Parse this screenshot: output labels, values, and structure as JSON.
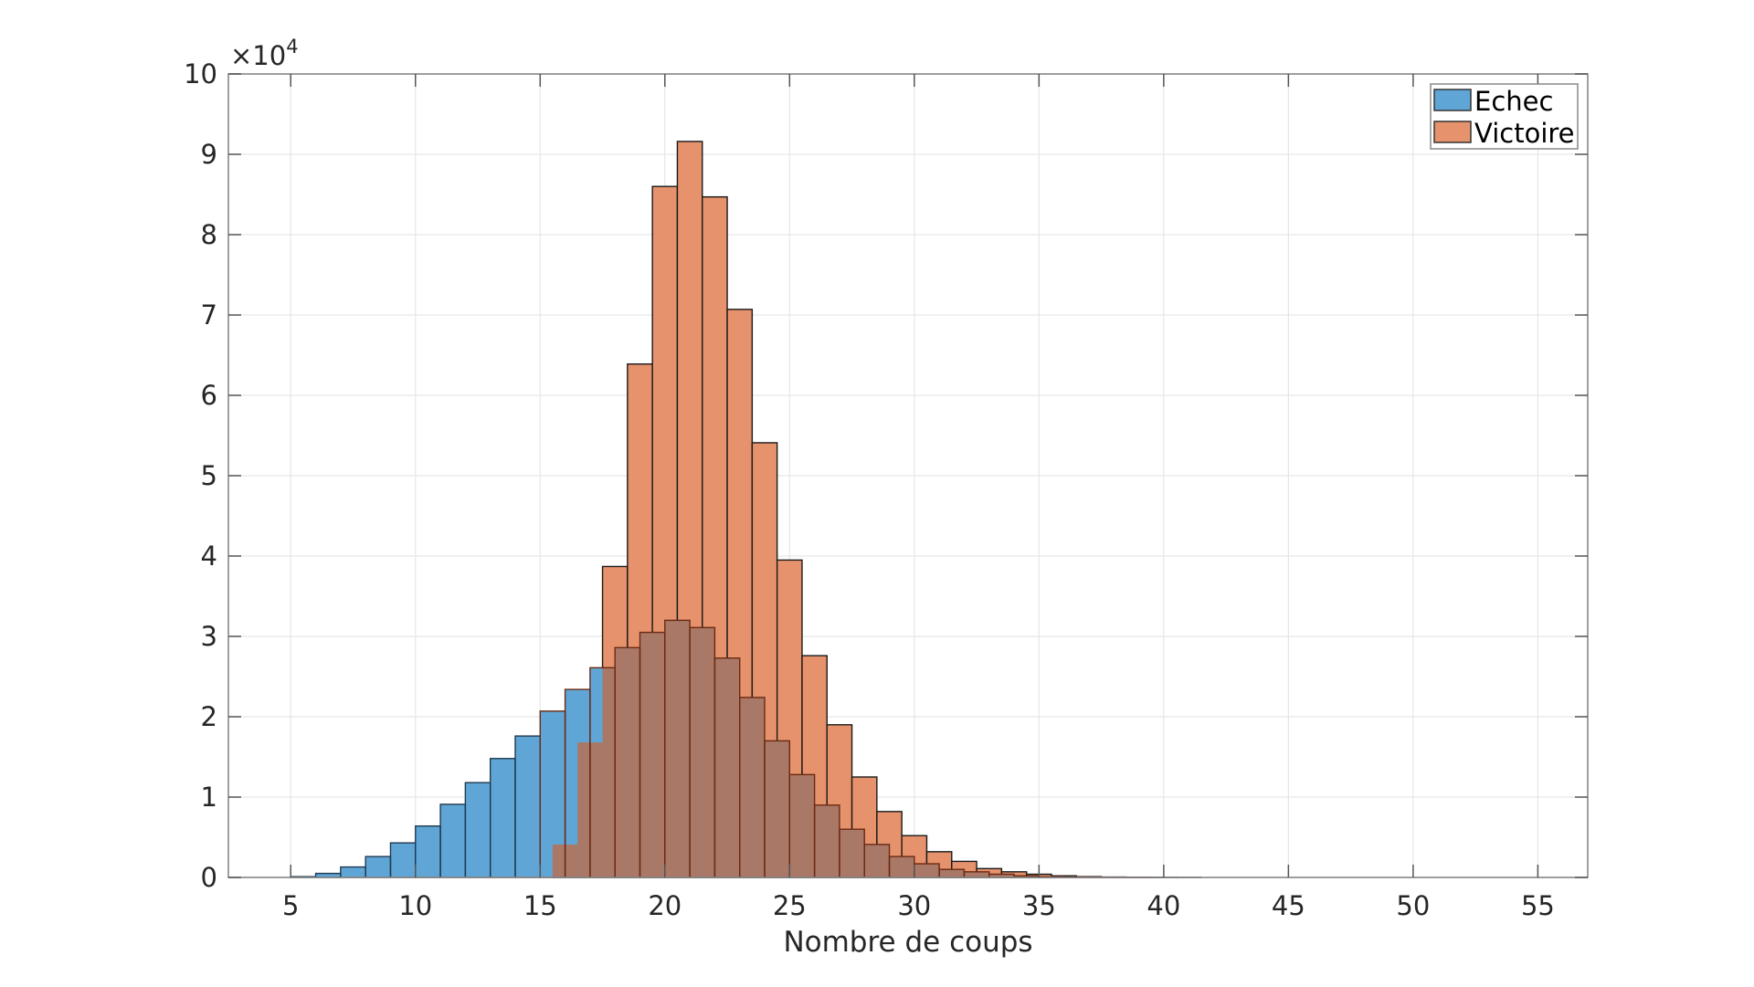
{
  "chart_data": {
    "type": "bar",
    "subtype": "overlapping-histogram",
    "title": "",
    "xlabel": "Nombre de coups",
    "ylabel": "",
    "y_multiplier_label": "×10",
    "y_multiplier_exponent": "4",
    "xlim": [
      2.5,
      57
    ],
    "ylim": [
      0,
      10
    ],
    "xticks": [
      5,
      10,
      15,
      20,
      25,
      30,
      35,
      40,
      45,
      50,
      55
    ],
    "yticks": [
      0,
      1,
      2,
      3,
      4,
      5,
      6,
      7,
      8,
      9,
      10
    ],
    "grid": true,
    "legend_position": "top-right",
    "bin_width": 1,
    "units_note": "values in units of 10^4",
    "series": [
      {
        "name": "Echec",
        "color": "#5fa6d7",
        "bin_edges_start": 5,
        "bin_alignment": "integer-edges",
        "bins": [
          {
            "x": 5,
            "value": 0.01
          },
          {
            "x": 6,
            "value": 0.05
          },
          {
            "x": 7,
            "value": 0.13
          },
          {
            "x": 8,
            "value": 0.26
          },
          {
            "x": 9,
            "value": 0.43
          },
          {
            "x": 10,
            "value": 0.64
          },
          {
            "x": 11,
            "value": 0.91
          },
          {
            "x": 12,
            "value": 1.18
          },
          {
            "x": 13,
            "value": 1.48
          },
          {
            "x": 14,
            "value": 1.76
          },
          {
            "x": 15,
            "value": 2.07
          },
          {
            "x": 16,
            "value": 2.34
          },
          {
            "x": 17,
            "value": 2.61
          },
          {
            "x": 18,
            "value": 2.86
          },
          {
            "x": 19,
            "value": 3.05
          },
          {
            "x": 20,
            "value": 3.2
          },
          {
            "x": 21,
            "value": 3.11
          },
          {
            "x": 22,
            "value": 2.73
          },
          {
            "x": 23,
            "value": 2.24
          },
          {
            "x": 24,
            "value": 1.7
          },
          {
            "x": 25,
            "value": 1.28
          },
          {
            "x": 26,
            "value": 0.9
          },
          {
            "x": 27,
            "value": 0.6
          },
          {
            "x": 28,
            "value": 0.41
          },
          {
            "x": 29,
            "value": 0.26
          },
          {
            "x": 30,
            "value": 0.17
          },
          {
            "x": 31,
            "value": 0.1
          },
          {
            "x": 32,
            "value": 0.07
          },
          {
            "x": 33,
            "value": 0.04
          },
          {
            "x": 34,
            "value": 0.02
          },
          {
            "x": 35,
            "value": 0.01
          },
          {
            "x": 36,
            "value": 0.005
          },
          {
            "x": 37,
            "value": 0.003
          },
          {
            "x": 38,
            "value": 0.002
          },
          {
            "x": 39,
            "value": 0.001
          }
        ]
      },
      {
        "name": "Victoire",
        "color": "#e6926c",
        "bin_alignment": "integer-centers",
        "bins": [
          {
            "x": 15.5,
            "value": 0.41
          },
          {
            "x": 16.5,
            "value": 1.68
          },
          {
            "x": 17.5,
            "value": 3.87
          },
          {
            "x": 18.5,
            "value": 6.39
          },
          {
            "x": 19.5,
            "value": 8.6
          },
          {
            "x": 20.5,
            "value": 9.16
          },
          {
            "x": 21.5,
            "value": 8.47
          },
          {
            "x": 22.5,
            "value": 7.07
          },
          {
            "x": 23.5,
            "value": 5.41
          },
          {
            "x": 24.5,
            "value": 3.95
          },
          {
            "x": 25.5,
            "value": 2.76
          },
          {
            "x": 26.5,
            "value": 1.9
          },
          {
            "x": 27.5,
            "value": 1.25
          },
          {
            "x": 28.5,
            "value": 0.82
          },
          {
            "x": 29.5,
            "value": 0.52
          },
          {
            "x": 30.5,
            "value": 0.32
          },
          {
            "x": 31.5,
            "value": 0.2
          },
          {
            "x": 32.5,
            "value": 0.11
          },
          {
            "x": 33.5,
            "value": 0.07
          },
          {
            "x": 34.5,
            "value": 0.04
          },
          {
            "x": 35.5,
            "value": 0.02
          },
          {
            "x": 36.5,
            "value": 0.01
          },
          {
            "x": 37.5,
            "value": 0.005
          },
          {
            "x": 38.5,
            "value": 0.003
          },
          {
            "x": 39.5,
            "value": 0.002
          },
          {
            "x": 40.5,
            "value": 0.001
          }
        ]
      }
    ]
  },
  "legend": {
    "items": [
      {
        "label": "Echec",
        "color": "#5fa6d7"
      },
      {
        "label": "Victoire",
        "color": "#e6926c"
      }
    ]
  },
  "colors": {
    "axis": "#888888",
    "grid": "#e6e6e6",
    "text": "#262626",
    "overlap": "#a97867"
  }
}
